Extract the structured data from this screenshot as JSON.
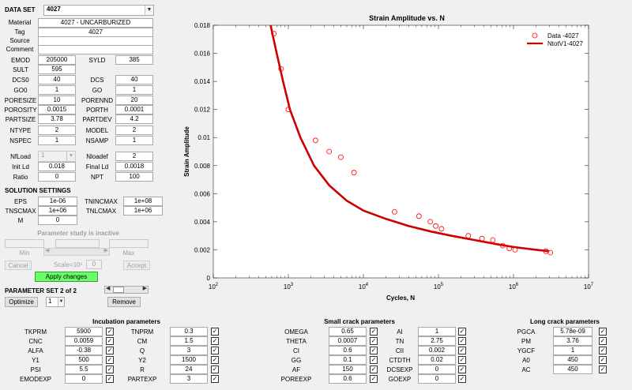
{
  "data_set": {
    "label": "DATA SET",
    "value": "4027",
    "material_label": "Material",
    "material": "4027 - UNCARBURIZED",
    "tag_label": "Tag",
    "tag": "4027",
    "source_label": "Source",
    "source": "",
    "comment_label": "Comment",
    "comment": ""
  },
  "params": [
    {
      "label": "EMOD",
      "value": "205000",
      "label2": "SYLD",
      "value2": "385"
    },
    {
      "label": "SULT",
      "value": "595"
    },
    {
      "label": "DCS0",
      "value": "40",
      "label2": "DCS",
      "value2": "40"
    },
    {
      "label": "GO0",
      "value": "1",
      "label2": "GO",
      "value2": "1"
    },
    {
      "label": "PORESIZE",
      "value": "10",
      "label2": "PORENND",
      "value2": "20"
    },
    {
      "label": "POROSITY",
      "value": "0.0015",
      "label2": "PORTH",
      "value2": "0.0001"
    },
    {
      "label": "PARTSIZE",
      "value": "3.78",
      "label2": "PARTDEV",
      "value2": "4.2"
    },
    {
      "label": "NTYPE",
      "value": "2",
      "label2": "MODEL",
      "value2": "2"
    },
    {
      "label": "NSPEC",
      "value": "1",
      "label2": "NSAMP",
      "value2": "1"
    }
  ],
  "load": {
    "nfload_label": "NfLoad",
    "nfload": "1",
    "nloadef_label": "Nloadef",
    "nloadef": "2",
    "initld_label": "Init Ld",
    "initld": "0.018",
    "finalld_label": "Final Ld",
    "finalld": "0.0018",
    "ratio_label": "Ratio",
    "ratio": "0",
    "npt_label": "NPT",
    "npt": "100"
  },
  "solution": {
    "title": "SOLUTION SETTINGS",
    "eps_label": "EPS",
    "eps": "1e-06",
    "tnincmax_label": "TNINCMAX",
    "tnincmax": "1e+08",
    "tnscmax_label": "TNSCMAX",
    "tnscmax": "1e+06",
    "tnlcmax_label": "TNLCMAX",
    "tnlcmax": "1e+06",
    "m_label": "M",
    "m": "0"
  },
  "study": {
    "status": "Parameter study is inactive",
    "min_label": "Min",
    "max_label": "Max",
    "cancel_label": "Cancel",
    "scale_label": "Scale=10ˣ",
    "scale_value": "0",
    "accept_label": "Accept",
    "apply_label": "Apply changes"
  },
  "param_set": {
    "title": "PARAMETER SET 2 of 2",
    "optimize_label": "Optimize",
    "select_value": "1",
    "remove_label": "Remove"
  },
  "incubation": {
    "title": "Incubation parameters",
    "rows": [
      {
        "l1": "TKPRM",
        "v1": "5900",
        "l2": "TNPRM",
        "v2": "0.3"
      },
      {
        "l1": "CNC",
        "v1": "0.0059",
        "l2": "CM",
        "v2": "1.5"
      },
      {
        "l1": "ALFA",
        "v1": "-0.38",
        "l2": "Q",
        "v2": "3"
      },
      {
        "l1": "Y1",
        "v1": "500",
        "l2": "Y2",
        "v2": "1500"
      },
      {
        "l1": "PSI",
        "v1": "5.5",
        "l2": "R",
        "v2": "24"
      },
      {
        "l1": "EMODEXP",
        "v1": "0",
        "l2": "PARTEXP",
        "v2": "3"
      }
    ]
  },
  "small_crack": {
    "title": "Small crack parameters",
    "rows": [
      {
        "l1": "OMEGA",
        "v1": "0.65",
        "l2": "AI",
        "v2": "1"
      },
      {
        "l1": "THETA",
        "v1": "0.0007",
        "l2": "TN",
        "v2": "2.75"
      },
      {
        "l1": "CI",
        "v1": "0.6",
        "l2": "CII",
        "v2": "0.002"
      },
      {
        "l1": "GG",
        "v1": "0.1",
        "l2": "CTDTH",
        "v2": "0.02"
      },
      {
        "l1": "AF",
        "v1": "150",
        "l2": "DCSEXP",
        "v2": "0"
      },
      {
        "l1": "POREEXP",
        "v1": "0.6",
        "l2": "GOEXP",
        "v2": "0"
      }
    ]
  },
  "long_crack": {
    "title": "Long crack parameters",
    "rows": [
      {
        "l1": "PGCA",
        "v1": "5.78e-09"
      },
      {
        "l1": "PM",
        "v1": "3.76"
      },
      {
        "l1": "YGCF",
        "v1": "1"
      },
      {
        "l1": "A0",
        "v1": "450"
      },
      {
        "l1": "AC",
        "v1": "450"
      }
    ]
  },
  "check_mark": "✓",
  "chart_data": {
    "type": "scatter",
    "title": "Strain Amplitude vs. N",
    "xlabel": "Cycles, N",
    "ylabel": "Strain Amplitude",
    "xscale": "log",
    "xlim": [
      100,
      10000000
    ],
    "ylim": [
      0,
      0.018
    ],
    "xticks": [
      "10^2",
      "10^3",
      "10^4",
      "10^5",
      "10^6",
      "10^7"
    ],
    "yticks": [
      "0",
      "0.002",
      "0.004",
      "0.006",
      "0.008",
      "0.01",
      "0.012",
      "0.014",
      "0.016",
      "0.018"
    ],
    "legend_position": "top-right",
    "series": [
      {
        "name": "Data -4027",
        "marker": "circle",
        "color": "#ff0000",
        "points": [
          [
            640,
            0.0174
          ],
          [
            800,
            0.0149
          ],
          [
            1000,
            0.012
          ],
          [
            2300,
            0.0098
          ],
          [
            3500,
            0.009
          ],
          [
            5000,
            0.0086
          ],
          [
            7500,
            0.0075
          ],
          [
            26000,
            0.0047
          ],
          [
            55000,
            0.0044
          ],
          [
            78000,
            0.004
          ],
          [
            92000,
            0.0037
          ],
          [
            110000,
            0.0035
          ],
          [
            250000,
            0.003
          ],
          [
            380000,
            0.0028
          ],
          [
            530000,
            0.0027
          ],
          [
            720000,
            0.0023
          ],
          [
            880000,
            0.0021
          ],
          [
            1050000,
            0.002
          ],
          [
            2700000,
            0.0019
          ],
          [
            3100000,
            0.0018
          ]
        ]
      },
      {
        "name": "NtotV1-4027",
        "color": "#cc0000",
        "points": [
          [
            580,
            0.018
          ],
          [
            700,
            0.016
          ],
          [
            850,
            0.014
          ],
          [
            1050,
            0.012
          ],
          [
            1450,
            0.01
          ],
          [
            2200,
            0.008
          ],
          [
            3500,
            0.0066
          ],
          [
            6000,
            0.0055
          ],
          [
            10000,
            0.0048
          ],
          [
            20000,
            0.0042
          ],
          [
            40000,
            0.0037
          ],
          [
            80000,
            0.0033
          ],
          [
            150000,
            0.003
          ],
          [
            300000,
            0.0027
          ],
          [
            600000,
            0.0024
          ],
          [
            1000000,
            0.0022
          ],
          [
            2000000,
            0.002
          ],
          [
            3000000,
            0.0019
          ]
        ]
      }
    ]
  }
}
